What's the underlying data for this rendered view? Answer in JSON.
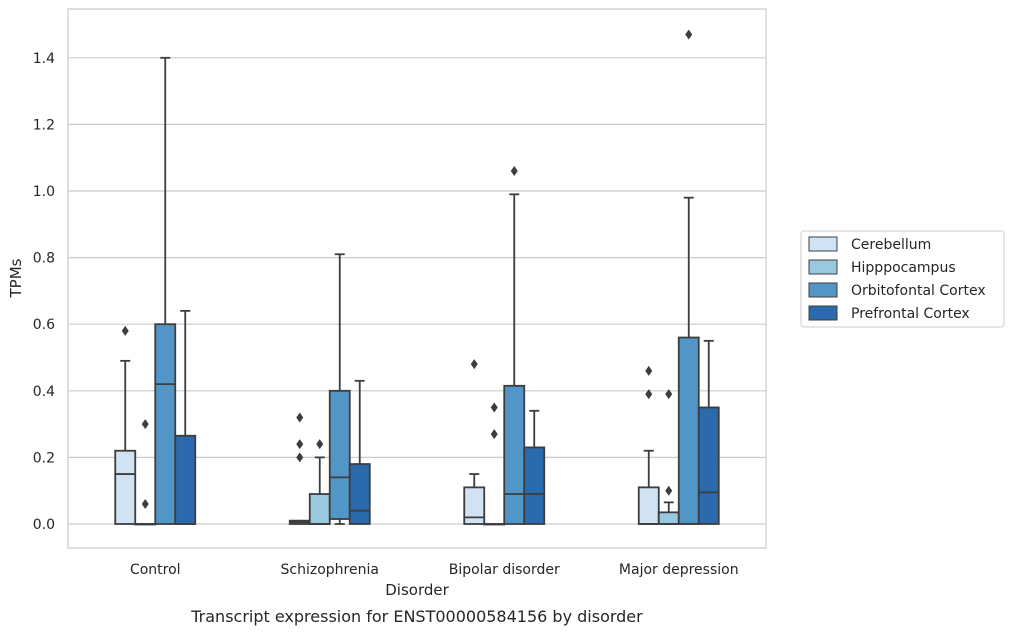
{
  "chart_data": {
    "type": "box",
    "caption": "Transcript expression for ENST00000584156 by disorder",
    "xlabel": "Disorder",
    "ylabel": "TPMs",
    "ylim": [
      -0.07,
      1.55
    ],
    "yticks": [
      0.0,
      0.2,
      0.4,
      0.6,
      0.8,
      1.0,
      1.2,
      1.4
    ],
    "ytick_labels": [
      "0.0",
      "0.2",
      "0.4",
      "0.6",
      "0.8",
      "1.0",
      "1.2",
      "1.4"
    ],
    "grid": "horizontal",
    "legend_position": "right",
    "categories": [
      "Control",
      "Schizophrenia",
      "Bipolar disorder",
      "Major depression"
    ],
    "series": [
      {
        "name": "Cerebellum",
        "color": "#d1e2f2",
        "boxes": [
          {
            "q1": 0.0,
            "median": 0.15,
            "q3": 0.22,
            "whisker_low": 0.0,
            "whisker_high": 0.49,
            "outliers": [
              0.58
            ]
          },
          {
            "q1": 0.0,
            "median": 0.005,
            "q3": 0.01,
            "whisker_low": 0.0,
            "whisker_high": 0.01,
            "outliers": [
              0.2,
              0.24,
              0.32
            ]
          },
          {
            "q1": 0.0,
            "median": 0.02,
            "q3": 0.11,
            "whisker_low": 0.0,
            "whisker_high": 0.15,
            "outliers": [
              0.48
            ]
          },
          {
            "q1": 0.0,
            "median": 0.0,
            "q3": 0.11,
            "whisker_low": 0.0,
            "whisker_high": 0.22,
            "outliers": [
              0.39,
              0.46
            ]
          }
        ]
      },
      {
        "name": "Hipppocampus",
        "color": "#9ac8e0",
        "boxes": [
          {
            "q1": 0.0,
            "median": 0.0,
            "q3": 0.0,
            "whisker_low": 0.0,
            "whisker_high": 0.0,
            "outliers": [
              0.06,
              0.3
            ]
          },
          {
            "q1": 0.0,
            "median": 0.0,
            "q3": 0.09,
            "whisker_low": 0.0,
            "whisker_high": 0.2,
            "outliers": [
              0.24
            ]
          },
          {
            "q1": 0.0,
            "median": 0.0,
            "q3": 0.0,
            "whisker_low": 0.0,
            "whisker_high": 0.0,
            "outliers": [
              0.27,
              0.35
            ]
          },
          {
            "q1": 0.0,
            "median": 0.0,
            "q3": 0.035,
            "whisker_low": 0.0,
            "whisker_high": 0.065,
            "outliers": [
              0.1,
              0.39
            ]
          }
        ]
      },
      {
        "name": "Orbitofontal Cortex",
        "color": "#5296c8",
        "boxes": [
          {
            "q1": 0.0,
            "median": 0.42,
            "q3": 0.6,
            "whisker_low": 0.0,
            "whisker_high": 1.4,
            "outliers": []
          },
          {
            "q1": 0.015,
            "median": 0.14,
            "q3": 0.4,
            "whisker_low": 0.0,
            "whisker_high": 0.81,
            "outliers": []
          },
          {
            "q1": 0.0,
            "median": 0.09,
            "q3": 0.415,
            "whisker_low": 0.0,
            "whisker_high": 0.99,
            "outliers": [
              1.06
            ]
          },
          {
            "q1": 0.0,
            "median": 0.0,
            "q3": 0.56,
            "whisker_low": 0.0,
            "whisker_high": 0.98,
            "outliers": [
              1.47
            ]
          }
        ]
      },
      {
        "name": "Prefrontal Cortex",
        "color": "#2b6aad",
        "boxes": [
          {
            "q1": 0.0,
            "median": 0.0,
            "q3": 0.265,
            "whisker_low": 0.0,
            "whisker_high": 0.64,
            "outliers": []
          },
          {
            "q1": 0.0,
            "median": 0.04,
            "q3": 0.18,
            "whisker_low": 0.0,
            "whisker_high": 0.43,
            "outliers": []
          },
          {
            "q1": 0.0,
            "median": 0.09,
            "q3": 0.23,
            "whisker_low": 0.0,
            "whisker_high": 0.34,
            "outliers": []
          },
          {
            "q1": 0.0,
            "median": 0.095,
            "q3": 0.35,
            "whisker_low": 0.0,
            "whisker_high": 0.55,
            "outliers": []
          }
        ]
      }
    ]
  }
}
